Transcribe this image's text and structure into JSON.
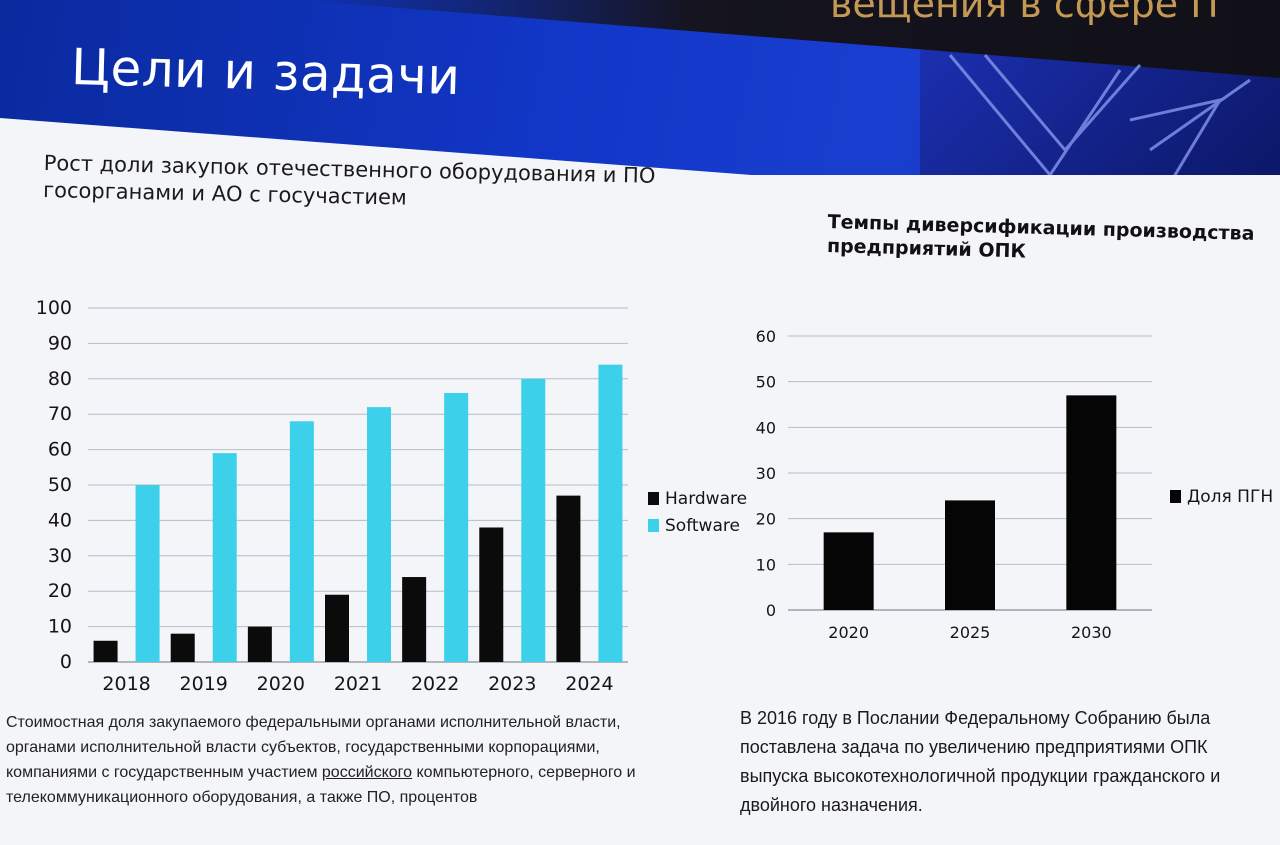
{
  "slide": {
    "title": "Цели и задачи",
    "banner": "вещения в сфере IT"
  },
  "left": {
    "subtitle": "Рост доли закупок отечественного оборудования и ПО госорганами и АО с госучастием",
    "caption_part1": "Стоимостная доля закупаемого федеральными органами исполнительной власти, органами исполнительной власти субъектов, государственными корпорациями, компаниями с государственным участием ",
    "caption_underlined": "российского",
    "caption_part2": " компьютерного, серверного и телекоммуникационного оборудования, а также ПО, процентов"
  },
  "right": {
    "title": "Темпы диверсификации производства предприятий ОПК",
    "caption": "В 2016 году в Послании Федеральному Собранию была поставлена задача по увеличению предприятиями ОПК выпуска высокотехнологичной продукции гражданского и двойного назначения."
  },
  "colors": {
    "hardware": "#0b0b0b",
    "software": "#3dd0ea",
    "pgn": "#050505",
    "grid": "#b7bcc6"
  },
  "chart_data": [
    {
      "type": "bar",
      "title": "Рост доли закупок отечественного оборудования и ПО госорганами и АО с госучастием",
      "categories": [
        "2018",
        "2019",
        "2020",
        "2021",
        "2022",
        "2023",
        "2024"
      ],
      "series": [
        {
          "name": "Hardware",
          "values": [
            6,
            8,
            10,
            19,
            24,
            38,
            47
          ]
        },
        {
          "name": "Software",
          "values": [
            50,
            59,
            68,
            72,
            76,
            80,
            84
          ]
        }
      ],
      "yticks": [
        "0",
        "10",
        "20",
        "30",
        "40",
        "50",
        "60",
        "70",
        "80",
        "90",
        "100"
      ],
      "ylim": [
        0,
        100
      ],
      "grid": true,
      "legend": "right"
    },
    {
      "type": "bar",
      "title": "Темпы диверсификации производства предприятий ОПК",
      "categories": [
        "2020",
        "2025",
        "2030"
      ],
      "series": [
        {
          "name": "Доля ПГН",
          "values": [
            17,
            24,
            47
          ]
        }
      ],
      "yticks": [
        "0",
        "10",
        "20",
        "30",
        "40",
        "50",
        "60"
      ],
      "ylim": [
        0,
        60
      ],
      "grid": true,
      "legend": "right"
    }
  ]
}
